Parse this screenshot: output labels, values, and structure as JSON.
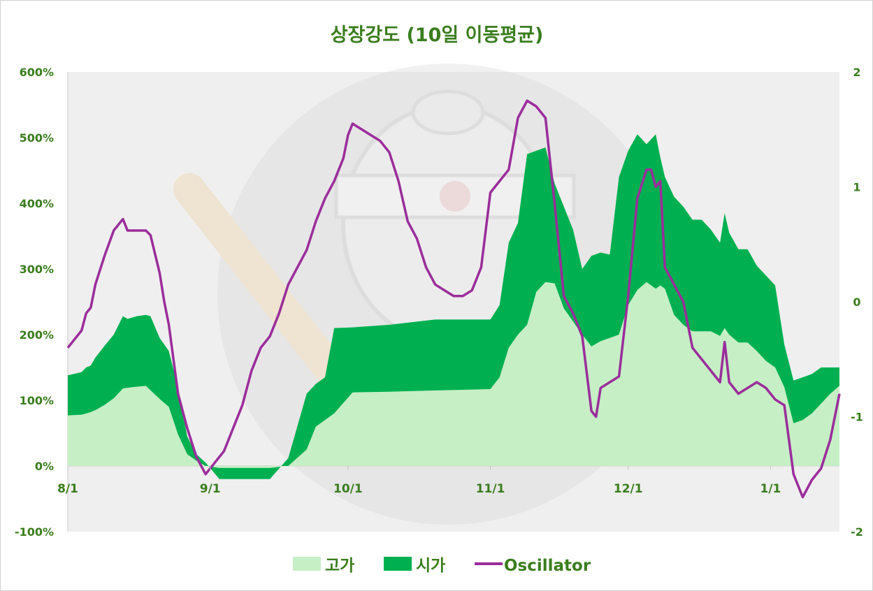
{
  "chart_data": {
    "type": "area",
    "title": "상장강도 (10일 이동평균)",
    "x_ticks": [
      "8/1",
      "9/1",
      "10/1",
      "11/1",
      "12/1",
      "1/1"
    ],
    "x_tick_positions": [
      0,
      31,
      61,
      92,
      122,
      153
    ],
    "x_range": [
      0,
      168
    ],
    "y_left": {
      "ticks": [
        "600%",
        "500%",
        "400%",
        "300%",
        "200%",
        "100%",
        "0%",
        "-100%"
      ],
      "range": [
        -100,
        600
      ]
    },
    "y_right": {
      "ticks": [
        "2",
        "1",
        "0",
        "-1",
        "-2"
      ],
      "range": [
        -2,
        2
      ]
    },
    "legend_position": "bottom",
    "grid": false,
    "series": [
      {
        "name": "고가",
        "kind": "area",
        "color": "#c6efc6",
        "x": [
          0,
          3,
          5,
          6,
          8,
          10,
          12,
          14,
          17,
          20,
          22,
          24,
          26,
          28,
          30,
          33,
          36,
          40,
          44,
          48,
          52,
          54,
          56,
          58,
          62,
          70,
          80,
          86,
          92,
          94,
          96,
          98,
          100,
          102,
          104,
          106,
          108,
          110,
          112,
          114,
          116,
          118,
          120,
          122,
          124,
          126,
          128,
          129,
          130,
          132,
          134,
          136,
          138,
          140,
          142,
          143,
          144,
          146,
          148,
          150,
          152,
          154,
          156,
          158,
          160,
          162,
          164,
          166,
          168
        ],
        "values": [
          77,
          78,
          82,
          85,
          93,
          103,
          118,
          120,
          122,
          102,
          90,
          48,
          18,
          8,
          0,
          -3,
          -3,
          -3,
          -3,
          0,
          25,
          60,
          70,
          80,
          112,
          113,
          115,
          116,
          117,
          135,
          180,
          200,
          215,
          265,
          280,
          278,
          240,
          220,
          200,
          182,
          190,
          195,
          200,
          245,
          268,
          280,
          270,
          275,
          270,
          230,
          215,
          205,
          205,
          205,
          198,
          210,
          200,
          188,
          188,
          175,
          160,
          150,
          120,
          65,
          70,
          80,
          95,
          110,
          122
        ]
      },
      {
        "name": "시가",
        "kind": "area",
        "color": "#00b050",
        "x": [
          0,
          3,
          4,
          5,
          6,
          8,
          10,
          12,
          13,
          15,
          17,
          18,
          20,
          22,
          24,
          26,
          28,
          30,
          33,
          36,
          40,
          44,
          48,
          52,
          54,
          56,
          58,
          62,
          70,
          80,
          86,
          92,
          94,
          96,
          98,
          100,
          102,
          104,
          106,
          108,
          110,
          112,
          114,
          116,
          118,
          120,
          122,
          124,
          126,
          128,
          129,
          130,
          132,
          134,
          136,
          138,
          140,
          142,
          143,
          144,
          146,
          148,
          150,
          152,
          154,
          156,
          158,
          160,
          162,
          164,
          166,
          168
        ],
        "values": [
          138,
          143,
          150,
          153,
          165,
          183,
          200,
          228,
          224,
          228,
          230,
          228,
          195,
          175,
          120,
          45,
          18,
          5,
          -20,
          -20,
          -20,
          -20,
          12,
          110,
          125,
          135,
          210,
          211,
          215,
          223,
          223,
          223,
          245,
          340,
          370,
          475,
          480,
          485,
          430,
          395,
          360,
          300,
          320,
          325,
          322,
          440,
          480,
          505,
          490,
          505,
          470,
          440,
          410,
          395,
          375,
          375,
          360,
          340,
          385,
          355,
          330,
          330,
          305,
          290,
          275,
          185,
          130,
          135,
          140,
          150,
          150,
          150
        ]
      },
      {
        "name": "Oscillator",
        "kind": "line",
        "axis": "right",
        "color": "#9b2d9b",
        "x": [
          0,
          3,
          4,
          5,
          6,
          8,
          10,
          12,
          13,
          15,
          17,
          18,
          20,
          21,
          22,
          24,
          26,
          28,
          30,
          32,
          34,
          36,
          38,
          40,
          42,
          44,
          46,
          48,
          52,
          54,
          56,
          58,
          60,
          61,
          62,
          64,
          66,
          68,
          70,
          72,
          74,
          76,
          78,
          80,
          84,
          86,
          88,
          90,
          92,
          94,
          96,
          98,
          100,
          102,
          104,
          106,
          108,
          110,
          112,
          114,
          115,
          116,
          118,
          120,
          122,
          124,
          126,
          127,
          128,
          129,
          130,
          132,
          134,
          136,
          138,
          140,
          142,
          143,
          144,
          146,
          148,
          150,
          152,
          154,
          156,
          158,
          160,
          162,
          164,
          166,
          168
        ],
        "values": [
          -0.4,
          -0.25,
          -0.1,
          -0.05,
          0.15,
          0.4,
          0.62,
          0.72,
          0.62,
          0.62,
          0.62,
          0.58,
          0.25,
          0.0,
          -0.2,
          -0.8,
          -1.1,
          -1.35,
          -1.5,
          -1.4,
          -1.3,
          -1.1,
          -0.9,
          -0.6,
          -0.4,
          -0.3,
          -0.1,
          0.15,
          0.45,
          0.7,
          0.9,
          1.05,
          1.25,
          1.45,
          1.55,
          1.5,
          1.45,
          1.4,
          1.3,
          1.05,
          0.7,
          0.55,
          0.3,
          0.15,
          0.05,
          0.05,
          0.1,
          0.3,
          0.95,
          1.05,
          1.15,
          1.6,
          1.75,
          1.7,
          1.6,
          0.85,
          0.05,
          -0.1,
          -0.3,
          -0.95,
          -1.0,
          -0.75,
          -0.7,
          -0.65,
          0.05,
          0.9,
          1.15,
          1.15,
          1.0,
          1.05,
          0.3,
          0.15,
          0.0,
          -0.4,
          -0.5,
          -0.6,
          -0.7,
          -0.35,
          -0.7,
          -0.8,
          -0.75,
          -0.7,
          -0.75,
          -0.85,
          -0.9,
          -1.5,
          -1.7,
          -1.55,
          -1.45,
          -1.2,
          -0.8
        ]
      }
    ]
  }
}
